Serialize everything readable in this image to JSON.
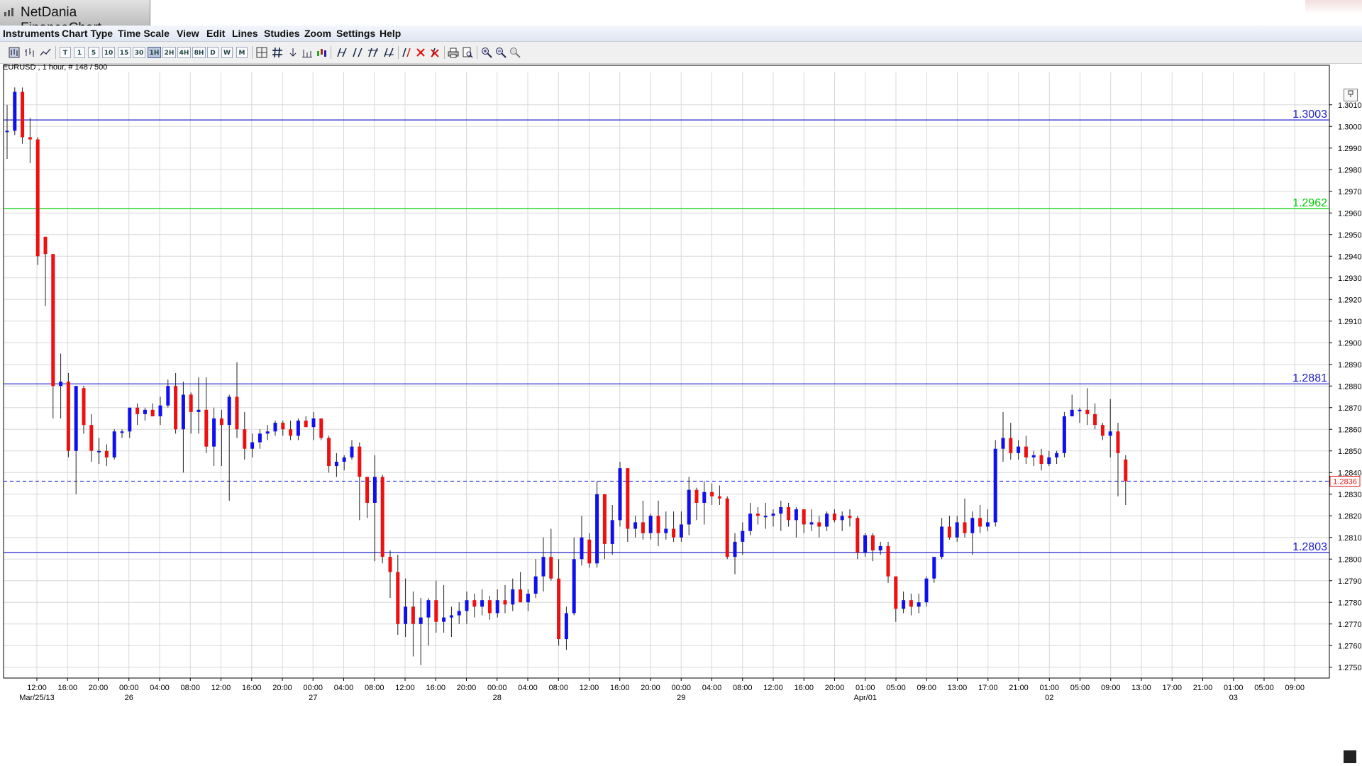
{
  "window": {
    "title": "NetDania FinanceChart"
  },
  "menu": [
    "Instruments",
    "Chart Type",
    "Time Scale",
    "View",
    "Edit",
    "Lines",
    "Studies",
    "Zoom",
    "Settings",
    "Help"
  ],
  "toolbar": {
    "timescales": [
      "T",
      "1",
      "5",
      "10",
      "15",
      "30",
      "1H",
      "2H",
      "4H",
      "8H",
      "D",
      "W",
      "M"
    ],
    "selected_timescale": "1H"
  },
  "symbol_info": "EURUSD , 1 hour, # 148 / 500",
  "colors": {
    "up_candle": "#1010ee",
    "down_candle": "#ee1010",
    "support_line": "#2020cc",
    "pivot_line": "#00cc00",
    "current_price_line": "#2030dd",
    "grid": "#d8d8d8"
  },
  "chart_data": {
    "type": "candlestick",
    "instrument": "EURUSD",
    "interval": "1 hour",
    "ylim": [
      1.2745,
      1.3025
    ],
    "y_ticks": [
      "1.3010",
      "1.3000",
      "1.2990",
      "1.2980",
      "1.2970",
      "1.2960",
      "1.2950",
      "1.2940",
      "1.2930",
      "1.2920",
      "1.2910",
      "1.2900",
      "1.2890",
      "1.2880",
      "1.2870",
      "1.2860",
      "1.2850",
      "1.2840",
      "1.2830",
      "1.2820",
      "1.2810",
      "1.2800",
      "1.2790",
      "1.2780",
      "1.2770",
      "1.2760",
      "1.2750"
    ],
    "current_price": "1.2836",
    "horizontal_lines": [
      {
        "value": 1.3003,
        "label": "1.3003",
        "color": "#2020cc"
      },
      {
        "value": 1.2962,
        "label": "1.2962",
        "color": "#00cc00"
      },
      {
        "value": 1.2881,
        "label": "1.2881",
        "color": "#2020cc"
      },
      {
        "value": 1.2803,
        "label": "1.2803",
        "color": "#2020cc"
      }
    ],
    "x_tick_times": [
      "12:00",
      "16:00",
      "20:00",
      "00:00",
      "04:00",
      "08:00",
      "12:00",
      "16:00",
      "20:00",
      "00:00",
      "04:00",
      "08:00",
      "12:00",
      "16:00",
      "20:00",
      "00:00",
      "04:00",
      "08:00",
      "12:00",
      "16:00",
      "20:00",
      "00:00",
      "04:00",
      "08:00",
      "12:00",
      "16:00",
      "20:00",
      "01:00",
      "05:00",
      "09:00",
      "13:00",
      "17:00",
      "21:00",
      "01:00",
      "05:00",
      "09:00",
      "13:00",
      "17:00",
      "21:00",
      "01:00",
      "05:00",
      "09:00"
    ],
    "x_tick_dates": [
      "Mar/25/13",
      "",
      "",
      "26",
      "",
      "",
      "",
      "",
      "",
      "27",
      "",
      "",
      "",
      "",
      "",
      "28",
      "",
      "",
      "",
      "",
      "",
      "29",
      "",
      "",
      "",
      "",
      "",
      "Apr/01",
      "",
      "",
      "",
      "",
      "",
      "02",
      "",
      "",
      "",
      "",
      "",
      "03",
      "",
      ""
    ],
    "candles": [
      {
        "o": 1.2998,
        "h": 1.301,
        "l": 1.2985,
        "c": 1.2998
      },
      {
        "o": 1.2998,
        "h": 1.3018,
        "l": 1.2996,
        "c": 1.3016
      },
      {
        "o": 1.3016,
        "h": 1.3018,
        "l": 1.2992,
        "c": 1.2995
      },
      {
        "o": 1.2995,
        "h": 1.3004,
        "l": 1.2983,
        "c": 1.2994
      },
      {
        "o": 1.2994,
        "h": 1.2995,
        "l": 1.2936,
        "c": 1.294
      },
      {
        "o": 1.2949,
        "h": 1.2949,
        "l": 1.2917,
        "c": 1.2941
      },
      {
        "o": 1.2941,
        "h": 1.2941,
        "l": 1.2865,
        "c": 1.288
      },
      {
        "o": 1.288,
        "h": 1.2895,
        "l": 1.2865,
        "c": 1.2882
      },
      {
        "o": 1.2882,
        "h": 1.2886,
        "l": 1.2847,
        "c": 1.285
      },
      {
        "o": 1.285,
        "h": 1.288,
        "l": 1.283,
        "c": 1.288
      },
      {
        "o": 1.2879,
        "h": 1.288,
        "l": 1.2858,
        "c": 1.2862
      },
      {
        "o": 1.2862,
        "h": 1.2867,
        "l": 1.2845,
        "c": 1.285
      },
      {
        "o": 1.285,
        "h": 1.2856,
        "l": 1.2844,
        "c": 1.285
      },
      {
        "o": 1.285,
        "h": 1.2853,
        "l": 1.2843,
        "c": 1.2847
      },
      {
        "o": 1.2847,
        "h": 1.286,
        "l": 1.2846,
        "c": 1.2859
      },
      {
        "o": 1.2859,
        "h": 1.286,
        "l": 1.2856,
        "c": 1.2859
      },
      {
        "o": 1.2859,
        "h": 1.287,
        "l": 1.2856,
        "c": 1.287
      },
      {
        "o": 1.287,
        "h": 1.2872,
        "l": 1.2862,
        "c": 1.2867
      },
      {
        "o": 1.2867,
        "h": 1.287,
        "l": 1.2864,
        "c": 1.2869
      },
      {
        "o": 1.2869,
        "h": 1.2872,
        "l": 1.2866,
        "c": 1.2866
      },
      {
        "o": 1.2866,
        "h": 1.2875,
        "l": 1.2862,
        "c": 1.2871
      },
      {
        "o": 1.2871,
        "h": 1.2883,
        "l": 1.287,
        "c": 1.288
      },
      {
        "o": 1.288,
        "h": 1.2886,
        "l": 1.2858,
        "c": 1.286
      },
      {
        "o": 1.286,
        "h": 1.2882,
        "l": 1.284,
        "c": 1.2876
      },
      {
        "o": 1.2876,
        "h": 1.2877,
        "l": 1.2858,
        "c": 1.2868
      },
      {
        "o": 1.2868,
        "h": 1.2884,
        "l": 1.2858,
        "c": 1.2869
      },
      {
        "o": 1.2869,
        "h": 1.2884,
        "l": 1.2849,
        "c": 1.2852
      },
      {
        "o": 1.2852,
        "h": 1.287,
        "l": 1.2843,
        "c": 1.2865
      },
      {
        "o": 1.2865,
        "h": 1.2869,
        "l": 1.2843,
        "c": 1.2862
      },
      {
        "o": 1.2862,
        "h": 1.2876,
        "l": 1.2827,
        "c": 1.2875
      },
      {
        "o": 1.2875,
        "h": 1.2891,
        "l": 1.2856,
        "c": 1.286
      },
      {
        "o": 1.286,
        "h": 1.2868,
        "l": 1.2846,
        "c": 1.2851
      },
      {
        "o": 1.2851,
        "h": 1.2858,
        "l": 1.2847,
        "c": 1.2854
      },
      {
        "o": 1.2854,
        "h": 1.286,
        "l": 1.2851,
        "c": 1.2858
      },
      {
        "o": 1.2858,
        "h": 1.2862,
        "l": 1.2855,
        "c": 1.2859
      },
      {
        "o": 1.2859,
        "h": 1.2864,
        "l": 1.2857,
        "c": 1.2863
      },
      {
        "o": 1.2863,
        "h": 1.2864,
        "l": 1.2857,
        "c": 1.286
      },
      {
        "o": 1.286,
        "h": 1.2864,
        "l": 1.2855,
        "c": 1.2857
      },
      {
        "o": 1.2857,
        "h": 1.2865,
        "l": 1.2855,
        "c": 1.2864
      },
      {
        "o": 1.2864,
        "h": 1.2866,
        "l": 1.2861,
        "c": 1.2861
      },
      {
        "o": 1.2861,
        "h": 1.2868,
        "l": 1.2855,
        "c": 1.2865
      },
      {
        "o": 1.2865,
        "h": 1.2865,
        "l": 1.2855,
        "c": 1.2856
      },
      {
        "o": 1.2856,
        "h": 1.2857,
        "l": 1.284,
        "c": 1.2843
      },
      {
        "o": 1.2843,
        "h": 1.2849,
        "l": 1.2838,
        "c": 1.2845
      },
      {
        "o": 1.2845,
        "h": 1.2848,
        "l": 1.2841,
        "c": 1.2847
      },
      {
        "o": 1.2847,
        "h": 1.2855,
        "l": 1.2846,
        "c": 1.2852
      },
      {
        "o": 1.2852,
        "h": 1.2854,
        "l": 1.2818,
        "c": 1.2838
      },
      {
        "o": 1.2838,
        "h": 1.2838,
        "l": 1.2819,
        "c": 1.2826
      },
      {
        "o": 1.2826,
        "h": 1.2848,
        "l": 1.2799,
        "c": 1.2838
      },
      {
        "o": 1.2838,
        "h": 1.2839,
        "l": 1.2798,
        "c": 1.2801
      },
      {
        "o": 1.2801,
        "h": 1.2804,
        "l": 1.2782,
        "c": 1.2794
      },
      {
        "o": 1.2794,
        "h": 1.2802,
        "l": 1.2765,
        "c": 1.277
      },
      {
        "o": 1.277,
        "h": 1.2791,
        "l": 1.2764,
        "c": 1.2778
      },
      {
        "o": 1.2778,
        "h": 1.2785,
        "l": 1.2755,
        "c": 1.277
      },
      {
        "o": 1.277,
        "h": 1.2782,
        "l": 1.2751,
        "c": 1.2773
      },
      {
        "o": 1.2773,
        "h": 1.2782,
        "l": 1.276,
        "c": 1.2781
      },
      {
        "o": 1.2781,
        "h": 1.279,
        "l": 1.2766,
        "c": 1.2771
      },
      {
        "o": 1.2771,
        "h": 1.2788,
        "l": 1.2766,
        "c": 1.2773
      },
      {
        "o": 1.2773,
        "h": 1.2778,
        "l": 1.2764,
        "c": 1.2774
      },
      {
        "o": 1.2774,
        "h": 1.278,
        "l": 1.277,
        "c": 1.2776
      },
      {
        "o": 1.2776,
        "h": 1.2785,
        "l": 1.277,
        "c": 1.2781
      },
      {
        "o": 1.2781,
        "h": 1.2784,
        "l": 1.2773,
        "c": 1.2778
      },
      {
        "o": 1.2778,
        "h": 1.2786,
        "l": 1.2774,
        "c": 1.2781
      },
      {
        "o": 1.2781,
        "h": 1.2783,
        "l": 1.2772,
        "c": 1.2775
      },
      {
        "o": 1.2775,
        "h": 1.2786,
        "l": 1.2773,
        "c": 1.2781
      },
      {
        "o": 1.2781,
        "h": 1.2788,
        "l": 1.2775,
        "c": 1.2779
      },
      {
        "o": 1.2779,
        "h": 1.2791,
        "l": 1.2776,
        "c": 1.2786
      },
      {
        "o": 1.2786,
        "h": 1.2794,
        "l": 1.278,
        "c": 1.278
      },
      {
        "o": 1.278,
        "h": 1.2786,
        "l": 1.2776,
        "c": 1.2784
      },
      {
        "o": 1.2784,
        "h": 1.28,
        "l": 1.2782,
        "c": 1.2792
      },
      {
        "o": 1.2792,
        "h": 1.281,
        "l": 1.2785,
        "c": 1.2801
      },
      {
        "o": 1.2801,
        "h": 1.2814,
        "l": 1.279,
        "c": 1.2791
      },
      {
        "o": 1.2791,
        "h": 1.28,
        "l": 1.276,
        "c": 1.2763
      },
      {
        "o": 1.2763,
        "h": 1.2778,
        "l": 1.2758,
        "c": 1.2775
      },
      {
        "o": 1.2775,
        "h": 1.281,
        "l": 1.2774,
        "c": 1.28
      },
      {
        "o": 1.28,
        "h": 1.282,
        "l": 1.2797,
        "c": 1.281
      },
      {
        "o": 1.2809,
        "h": 1.2812,
        "l": 1.2796,
        "c": 1.2798
      },
      {
        "o": 1.2798,
        "h": 1.2836,
        "l": 1.2796,
        "c": 1.283
      },
      {
        "o": 1.283,
        "h": 1.283,
        "l": 1.28,
        "c": 1.2807
      },
      {
        "o": 1.2807,
        "h": 1.2825,
        "l": 1.2802,
        "c": 1.2818
      },
      {
        "o": 1.2818,
        "h": 1.2845,
        "l": 1.2815,
        "c": 1.2842
      },
      {
        "o": 1.2842,
        "h": 1.2842,
        "l": 1.2808,
        "c": 1.2814
      },
      {
        "o": 1.2814,
        "h": 1.282,
        "l": 1.281,
        "c": 1.2817
      },
      {
        "o": 1.2817,
        "h": 1.2827,
        "l": 1.2809,
        "c": 1.2812
      },
      {
        "o": 1.2812,
        "h": 1.2821,
        "l": 1.2809,
        "c": 1.282
      },
      {
        "o": 1.282,
        "h": 1.2827,
        "l": 1.2806,
        "c": 1.2812
      },
      {
        "o": 1.2812,
        "h": 1.2822,
        "l": 1.2809,
        "c": 1.2814
      },
      {
        "o": 1.2814,
        "h": 1.2822,
        "l": 1.2808,
        "c": 1.281
      },
      {
        "o": 1.281,
        "h": 1.2822,
        "l": 1.2808,
        "c": 1.2816
      },
      {
        "o": 1.2816,
        "h": 1.2838,
        "l": 1.2811,
        "c": 1.2832
      },
      {
        "o": 1.2832,
        "h": 1.2833,
        "l": 1.2818,
        "c": 1.2826
      },
      {
        "o": 1.2826,
        "h": 1.2836,
        "l": 1.2816,
        "c": 1.2831
      },
      {
        "o": 1.2831,
        "h": 1.2835,
        "l": 1.2825,
        "c": 1.2829
      },
      {
        "o": 1.2829,
        "h": 1.2834,
        "l": 1.2825,
        "c": 1.2828
      },
      {
        "o": 1.2828,
        "h": 1.2829,
        "l": 1.28,
        "c": 1.2801
      },
      {
        "o": 1.2801,
        "h": 1.2812,
        "l": 1.2793,
        "c": 1.2808
      },
      {
        "o": 1.2808,
        "h": 1.2817,
        "l": 1.2802,
        "c": 1.2813
      },
      {
        "o": 1.2813,
        "h": 1.2826,
        "l": 1.2811,
        "c": 1.2821
      },
      {
        "o": 1.2821,
        "h": 1.2824,
        "l": 1.2816,
        "c": 1.282
      },
      {
        "o": 1.282,
        "h": 1.2826,
        "l": 1.2814,
        "c": 1.282
      },
      {
        "o": 1.282,
        "h": 1.2823,
        "l": 1.2815,
        "c": 1.2821
      },
      {
        "o": 1.2821,
        "h": 1.2827,
        "l": 1.2813,
        "c": 1.2824
      },
      {
        "o": 1.2824,
        "h": 1.2826,
        "l": 1.2815,
        "c": 1.2818
      },
      {
        "o": 1.2818,
        "h": 1.2824,
        "l": 1.281,
        "c": 1.2823
      },
      {
        "o": 1.2823,
        "h": 1.2823,
        "l": 1.2812,
        "c": 1.2816
      },
      {
        "o": 1.2816,
        "h": 1.2823,
        "l": 1.2813,
        "c": 1.2817
      },
      {
        "o": 1.2817,
        "h": 1.282,
        "l": 1.281,
        "c": 1.2815
      },
      {
        "o": 1.2815,
        "h": 1.2822,
        "l": 1.2813,
        "c": 1.2821
      },
      {
        "o": 1.2821,
        "h": 1.2823,
        "l": 1.2817,
        "c": 1.2818
      },
      {
        "o": 1.2818,
        "h": 1.2822,
        "l": 1.2813,
        "c": 1.282
      },
      {
        "o": 1.282,
        "h": 1.2823,
        "l": 1.2815,
        "c": 1.2819
      },
      {
        "o": 1.2819,
        "h": 1.282,
        "l": 1.28,
        "c": 1.2803
      },
      {
        "o": 1.2803,
        "h": 1.2812,
        "l": 1.2801,
        "c": 1.2811
      },
      {
        "o": 1.2811,
        "h": 1.2812,
        "l": 1.2799,
        "c": 1.2804
      },
      {
        "o": 1.2804,
        "h": 1.2808,
        "l": 1.2802,
        "c": 1.2806
      },
      {
        "o": 1.2806,
        "h": 1.2808,
        "l": 1.2789,
        "c": 1.2792
      },
      {
        "o": 1.2792,
        "h": 1.2792,
        "l": 1.2771,
        "c": 1.2777
      },
      {
        "o": 1.2777,
        "h": 1.2785,
        "l": 1.2775,
        "c": 1.2781
      },
      {
        "o": 1.2781,
        "h": 1.2784,
        "l": 1.2774,
        "c": 1.2778
      },
      {
        "o": 1.2778,
        "h": 1.2784,
        "l": 1.2775,
        "c": 1.278
      },
      {
        "o": 1.278,
        "h": 1.2792,
        "l": 1.2778,
        "c": 1.2791
      },
      {
        "o": 1.2791,
        "h": 1.28,
        "l": 1.2789,
        "c": 1.2801
      },
      {
        "o": 1.2801,
        "h": 1.2819,
        "l": 1.28,
        "c": 1.2815
      },
      {
        "o": 1.2815,
        "h": 1.282,
        "l": 1.2809,
        "c": 1.281
      },
      {
        "o": 1.281,
        "h": 1.282,
        "l": 1.2808,
        "c": 1.2817
      },
      {
        "o": 1.2817,
        "h": 1.2828,
        "l": 1.281,
        "c": 1.2812
      },
      {
        "o": 1.2812,
        "h": 1.2822,
        "l": 1.2802,
        "c": 1.2819
      },
      {
        "o": 1.2819,
        "h": 1.2825,
        "l": 1.2812,
        "c": 1.2815
      },
      {
        "o": 1.2815,
        "h": 1.2823,
        "l": 1.2813,
        "c": 1.2817
      },
      {
        "o": 1.2817,
        "h": 1.2855,
        "l": 1.2815,
        "c": 1.2851
      },
      {
        "o": 1.2851,
        "h": 1.2868,
        "l": 1.2845,
        "c": 1.2856
      },
      {
        "o": 1.2856,
        "h": 1.2863,
        "l": 1.2846,
        "c": 1.2849
      },
      {
        "o": 1.2849,
        "h": 1.2855,
        "l": 1.2846,
        "c": 1.2852
      },
      {
        "o": 1.2852,
        "h": 1.2857,
        "l": 1.2844,
        "c": 1.2847
      },
      {
        "o": 1.2847,
        "h": 1.285,
        "l": 1.2843,
        "c": 1.2848
      },
      {
        "o": 1.2848,
        "h": 1.2851,
        "l": 1.2841,
        "c": 1.2844
      },
      {
        "o": 1.2844,
        "h": 1.285,
        "l": 1.2843,
        "c": 1.2847
      },
      {
        "o": 1.2847,
        "h": 1.285,
        "l": 1.2844,
        "c": 1.2849
      },
      {
        "o": 1.2849,
        "h": 1.2868,
        "l": 1.2847,
        "c": 1.2866
      },
      {
        "o": 1.2866,
        "h": 1.2876,
        "l": 1.2866,
        "c": 1.2869
      },
      {
        "o": 1.2869,
        "h": 1.287,
        "l": 1.2863,
        "c": 1.2869
      },
      {
        "o": 1.2869,
        "h": 1.2879,
        "l": 1.2862,
        "c": 1.2867
      },
      {
        "o": 1.2867,
        "h": 1.2872,
        "l": 1.286,
        "c": 1.2862
      },
      {
        "o": 1.2862,
        "h": 1.2863,
        "l": 1.2855,
        "c": 1.2857
      },
      {
        "o": 1.2857,
        "h": 1.2874,
        "l": 1.2847,
        "c": 1.2859
      },
      {
        "o": 1.2859,
        "h": 1.2863,
        "l": 1.2829,
        "c": 1.2849
      },
      {
        "o": 1.2846,
        "h": 1.2848,
        "l": 1.2825,
        "c": 1.2836
      }
    ]
  }
}
